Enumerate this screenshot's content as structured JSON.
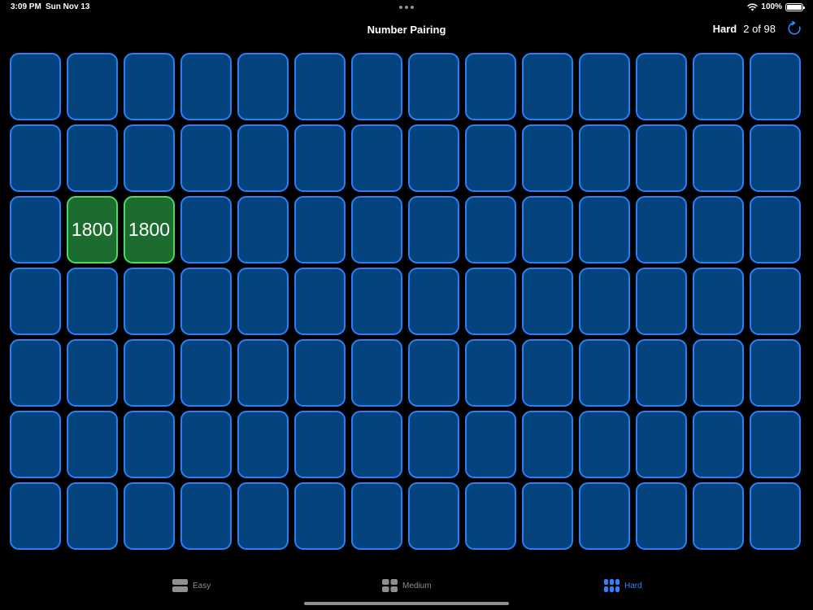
{
  "status_bar": {
    "time": "3:09 PM",
    "date": "Sun Nov 13",
    "battery": "100%",
    "battery_level": 1.0
  },
  "header": {
    "title": "Number Pairing",
    "difficulty": "Hard",
    "progress": "2 of 98"
  },
  "board": {
    "rows": 7,
    "columns": 14,
    "revealed_cards": [
      {
        "row": 3,
        "col": 2,
        "value": "1800",
        "state": "matched"
      },
      {
        "row": 3,
        "col": 3,
        "value": "1800",
        "state": "matched"
      }
    ]
  },
  "tabs": [
    {
      "label": "Easy",
      "icon": "grid-2-icon",
      "active": false
    },
    {
      "label": "Medium",
      "icon": "grid-4-icon",
      "active": false
    },
    {
      "label": "Hard",
      "icon": "grid-6-icon",
      "active": true
    }
  ],
  "colors": {
    "card_fill": "#05437f",
    "card_border": "#2a7ff7",
    "matched_fill": "#1d6c2f",
    "matched_border": "#4fd85f",
    "accent": "#2a84ff"
  }
}
